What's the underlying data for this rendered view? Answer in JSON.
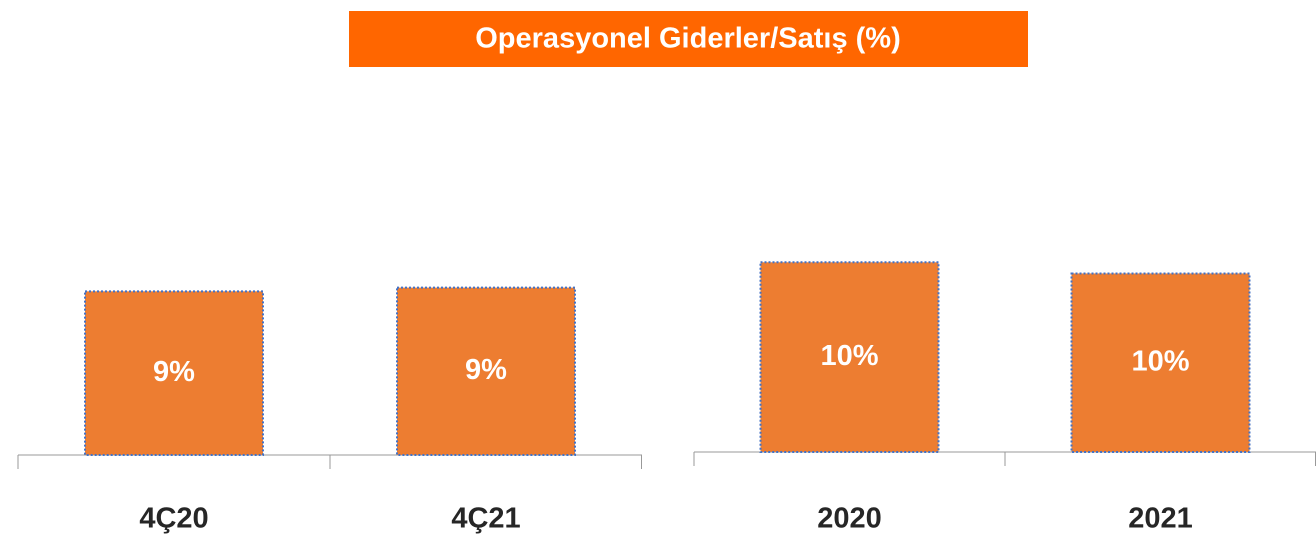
{
  "title": "Operasyonel Giderler/Satış (%)",
  "chart_data": [
    {
      "type": "bar",
      "categories": [
        "4Ç20",
        "4Ç21"
      ],
      "values": [
        8.8,
        9.0
      ],
      "value_labels": [
        "9%",
        "9%"
      ],
      "color": "#ed7d31"
    },
    {
      "type": "bar",
      "categories": [
        "2020",
        "2021"
      ],
      "values": [
        10.2,
        9.6
      ],
      "value_labels": [
        "10%",
        "10%"
      ],
      "color": "#ed7d31"
    }
  ]
}
